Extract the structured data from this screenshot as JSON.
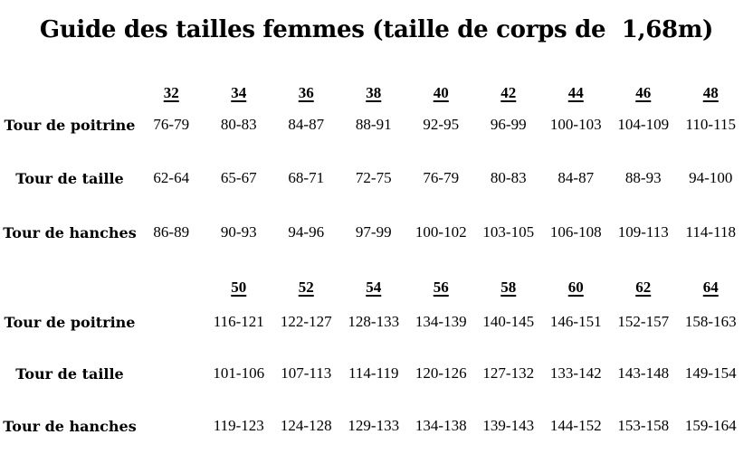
{
  "title": "Guide des tailles femmes (taille de corps de  1,68m)",
  "text_color": "#000000",
  "background_color": "#ffffff",
  "tables": [
    {
      "sizes": [
        "32",
        "34",
        "36",
        "38",
        "40",
        "42",
        "44",
        "46",
        "48"
      ],
      "rows": [
        {
          "label": "Tour de poitrine",
          "values": [
            "76-79",
            "80-83",
            "84-87",
            "88-91",
            "92-95",
            "96-99",
            "100-103",
            "104-109",
            "110-115"
          ]
        },
        {
          "label": "Tour de taille",
          "values": [
            "62-64",
            "65-67",
            "68-71",
            "72-75",
            "76-79",
            "80-83",
            "84-87",
            "88-93",
            "94-100"
          ]
        },
        {
          "label": "Tour de hanches",
          "values": [
            "86-89",
            "90-93",
            "94-96",
            "97-99",
            "100-102",
            "103-105",
            "106-108",
            "109-113",
            "114-118"
          ]
        }
      ]
    },
    {
      "sizes": [
        "50",
        "52",
        "54",
        "56",
        "58",
        "60",
        "62",
        "64"
      ],
      "rows": [
        {
          "label": "Tour de poitrine",
          "values": [
            "116-121",
            "122-127",
            "128-133",
            "134-139",
            "140-145",
            "146-151",
            "152-157",
            "158-163"
          ]
        },
        {
          "label": "Tour de taille",
          "values": [
            "101-106",
            "107-113",
            "114-119",
            "120-126",
            "127-132",
            "133-142",
            "143-148",
            "149-154"
          ]
        },
        {
          "label": "Tour de hanches",
          "values": [
            "119-123",
            "124-128",
            "129-133",
            "134-138",
            "139-143",
            "144-152",
            "153-158",
            "159-164"
          ]
        }
      ]
    }
  ]
}
